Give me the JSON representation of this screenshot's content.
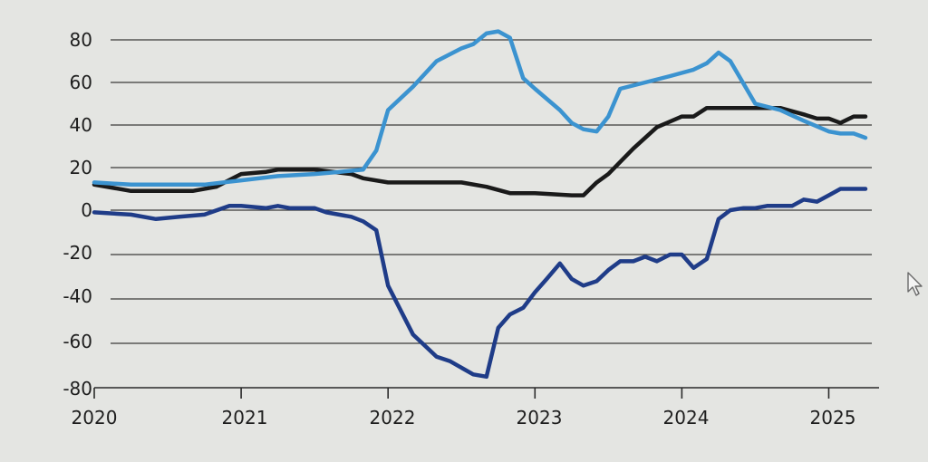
{
  "chart_data": {
    "type": "line",
    "title": "",
    "xlabel": "",
    "ylabel": "",
    "ylim": [
      -80,
      80
    ],
    "xlim": [
      2020.0,
      2025.25
    ],
    "y_ticks": [
      "80",
      "60",
      "40",
      "20",
      "0",
      "-20",
      "-40",
      "-60",
      "-80"
    ],
    "x_ticks": [
      "2020",
      "2021",
      "2022",
      "2023",
      "2024",
      "2025"
    ],
    "grid": "horizontal",
    "series": [
      {
        "color": "#1a1a1a",
        "x": [
          2020.0,
          2020.25,
          2020.5,
          2020.67,
          2020.83,
          2021.0,
          2021.17,
          2021.25,
          2021.5,
          2021.75,
          2021.83,
          2022.0,
          2022.25,
          2022.5,
          2022.67,
          2022.83,
          2023.0,
          2023.25,
          2023.33,
          2023.42,
          2023.5,
          2023.67,
          2023.83,
          2024.0,
          2024.08,
          2024.17,
          2024.5,
          2024.67,
          2024.83,
          2024.92,
          2025.0,
          2025.08,
          2025.17,
          2025.25
        ],
        "values": [
          12,
          9,
          9,
          9,
          11,
          17,
          18,
          19,
          19,
          17,
          15,
          13,
          13,
          13,
          11,
          8,
          8,
          7,
          7,
          13,
          17,
          29,
          39,
          44,
          44,
          48,
          48,
          48,
          45,
          43,
          43,
          41,
          44,
          44
        ]
      },
      {
        "color": "#3b93d0",
        "x": [
          2020.0,
          2020.25,
          2020.5,
          2020.75,
          2021.0,
          2021.25,
          2021.5,
          2021.67,
          2021.83,
          2021.92,
          2022.0,
          2022.17,
          2022.33,
          2022.5,
          2022.58,
          2022.67,
          2022.75,
          2022.83,
          2022.92,
          2023.0,
          2023.17,
          2023.25,
          2023.33,
          2023.42,
          2023.5,
          2023.58,
          2023.75,
          2023.92,
          2024.08,
          2024.17,
          2024.25,
          2024.33,
          2024.5,
          2024.67,
          2024.83,
          2025.0,
          2025.08,
          2025.17,
          2025.25
        ],
        "values": [
          13,
          12,
          12,
          12,
          14,
          16,
          17,
          18,
          19,
          28,
          47,
          58,
          70,
          76,
          78,
          83,
          84,
          81,
          62,
          57,
          47,
          41,
          38,
          37,
          44,
          57,
          60,
          63,
          66,
          69,
          74,
          70,
          50,
          47,
          42,
          37,
          36,
          36,
          34
        ]
      },
      {
        "color": "#1f3c88",
        "x": [
          2020.0,
          2020.25,
          2020.42,
          2020.58,
          2020.75,
          2020.92,
          2021.0,
          2021.17,
          2021.25,
          2021.33,
          2021.5,
          2021.58,
          2021.75,
          2021.83,
          2021.92,
          2022.0,
          2022.17,
          2022.33,
          2022.42,
          2022.58,
          2022.67,
          2022.75,
          2022.83,
          2022.92,
          2023.0,
          2023.08,
          2023.17,
          2023.25,
          2023.33,
          2023.42,
          2023.5,
          2023.58,
          2023.67,
          2023.75,
          2023.83,
          2023.92,
          2024.0,
          2024.08,
          2024.17,
          2024.25,
          2024.33,
          2024.42,
          2024.5,
          2024.58,
          2024.67,
          2024.75,
          2024.83,
          2024.92,
          2025.0,
          2025.08,
          2025.17,
          2025.25
        ],
        "values": [
          -1,
          -2,
          -4,
          -3,
          -2,
          2,
          2,
          1,
          2,
          1,
          1,
          -1,
          -3,
          -5,
          -9,
          -34,
          -56,
          -66,
          -68,
          -74,
          -75,
          -53,
          -47,
          -44,
          -37,
          -31,
          -24,
          -31,
          -34,
          -32,
          -27,
          -23,
          -23,
          -21,
          -23,
          -20,
          -20,
          -26,
          -22,
          -4,
          0,
          1,
          1,
          2,
          2,
          2,
          5,
          4,
          7,
          10,
          10,
          10
        ]
      }
    ]
  }
}
